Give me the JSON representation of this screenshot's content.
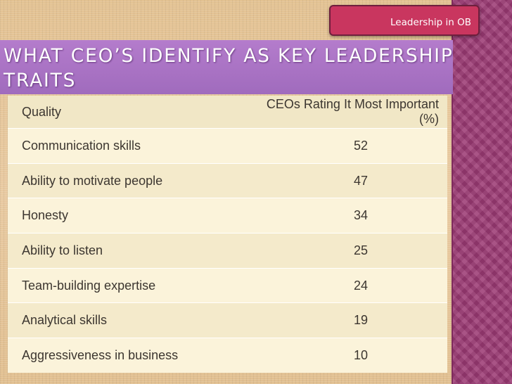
{
  "header": {
    "badge_label": "Leadership in OB",
    "title": "WHAT CEO’S IDENTIFY AS KEY LEADERSHIP TRAITS"
  },
  "table": {
    "columns": [
      "Quality",
      "CEOs Rating It Most Important (%)"
    ],
    "rows": [
      {
        "quality": "Communication skills",
        "rating": "52"
      },
      {
        "quality": "Ability to motivate people",
        "rating": "47"
      },
      {
        "quality": "Honesty",
        "rating": "34"
      },
      {
        "quality": "Ability to listen",
        "rating": "25"
      },
      {
        "quality": "Team-building expertise",
        "rating": "24"
      },
      {
        "quality": "Analytical skills",
        "rating": "19"
      },
      {
        "quality": "Aggressiveness in business",
        "rating": "10"
      }
    ]
  },
  "colors": {
    "background": "#e7c79e",
    "title_band": "#a873c4",
    "badge": "#c9365f",
    "right_strip": "#9c3a74",
    "table_panel": "#f5ecd0"
  }
}
